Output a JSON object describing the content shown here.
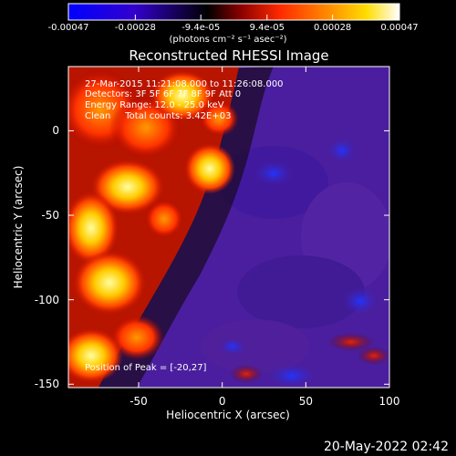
{
  "colorbar": {
    "tick_labels": [
      "-0.00047",
      "-0.00028",
      "-9.4e-05",
      "9.4e-05",
      "0.00028",
      "0.00047"
    ],
    "tick_values": [
      -0.00047,
      -0.00028,
      -9.4e-05,
      9.4e-05,
      0.00028,
      0.00047
    ],
    "range": [
      -0.00047,
      0.00047
    ],
    "units_label": "(photons cm⁻² s⁻¹ asec⁻²)",
    "colors": [
      "#0000ff",
      "#3300cc",
      "#000000",
      "#aa0000",
      "#ff2a00",
      "#ff8800",
      "#ffdd00",
      "#ffffff"
    ]
  },
  "chart_data": {
    "type": "heatmap",
    "title": "Reconstructed RHESSI Image",
    "xlabel": "Heliocentric X (arcsec)",
    "ylabel": "Heliocentric Y (arcsec)",
    "xlim": [
      -92,
      100
    ],
    "ylim": [
      -152,
      38
    ],
    "x_ticks": [
      -50,
      0,
      50,
      100
    ],
    "y_ticks": [
      0,
      -50,
      -100,
      -150
    ],
    "x_tick_labels": [
      "-50",
      "0",
      "50",
      "100"
    ],
    "y_tick_labels": [
      "0",
      "-50",
      "-100",
      "-150"
    ],
    "annotations": {
      "time_range": "27-Mar-2015 11:21:08.000 to 11:26:08.000",
      "detectors": "Detectors: 3F 5F 6F 7F 8F 9F Att 0",
      "energy_range": "Energy Range: 12.0 - 25.0 keV",
      "method": "Clean     Total counts: 3.42E+03",
      "peak": "Position of Peak = [-20,27]"
    },
    "peak_position": [
      -20,
      27
    ]
  },
  "footer": {
    "timestamp": "20-May-2022 02:42"
  }
}
